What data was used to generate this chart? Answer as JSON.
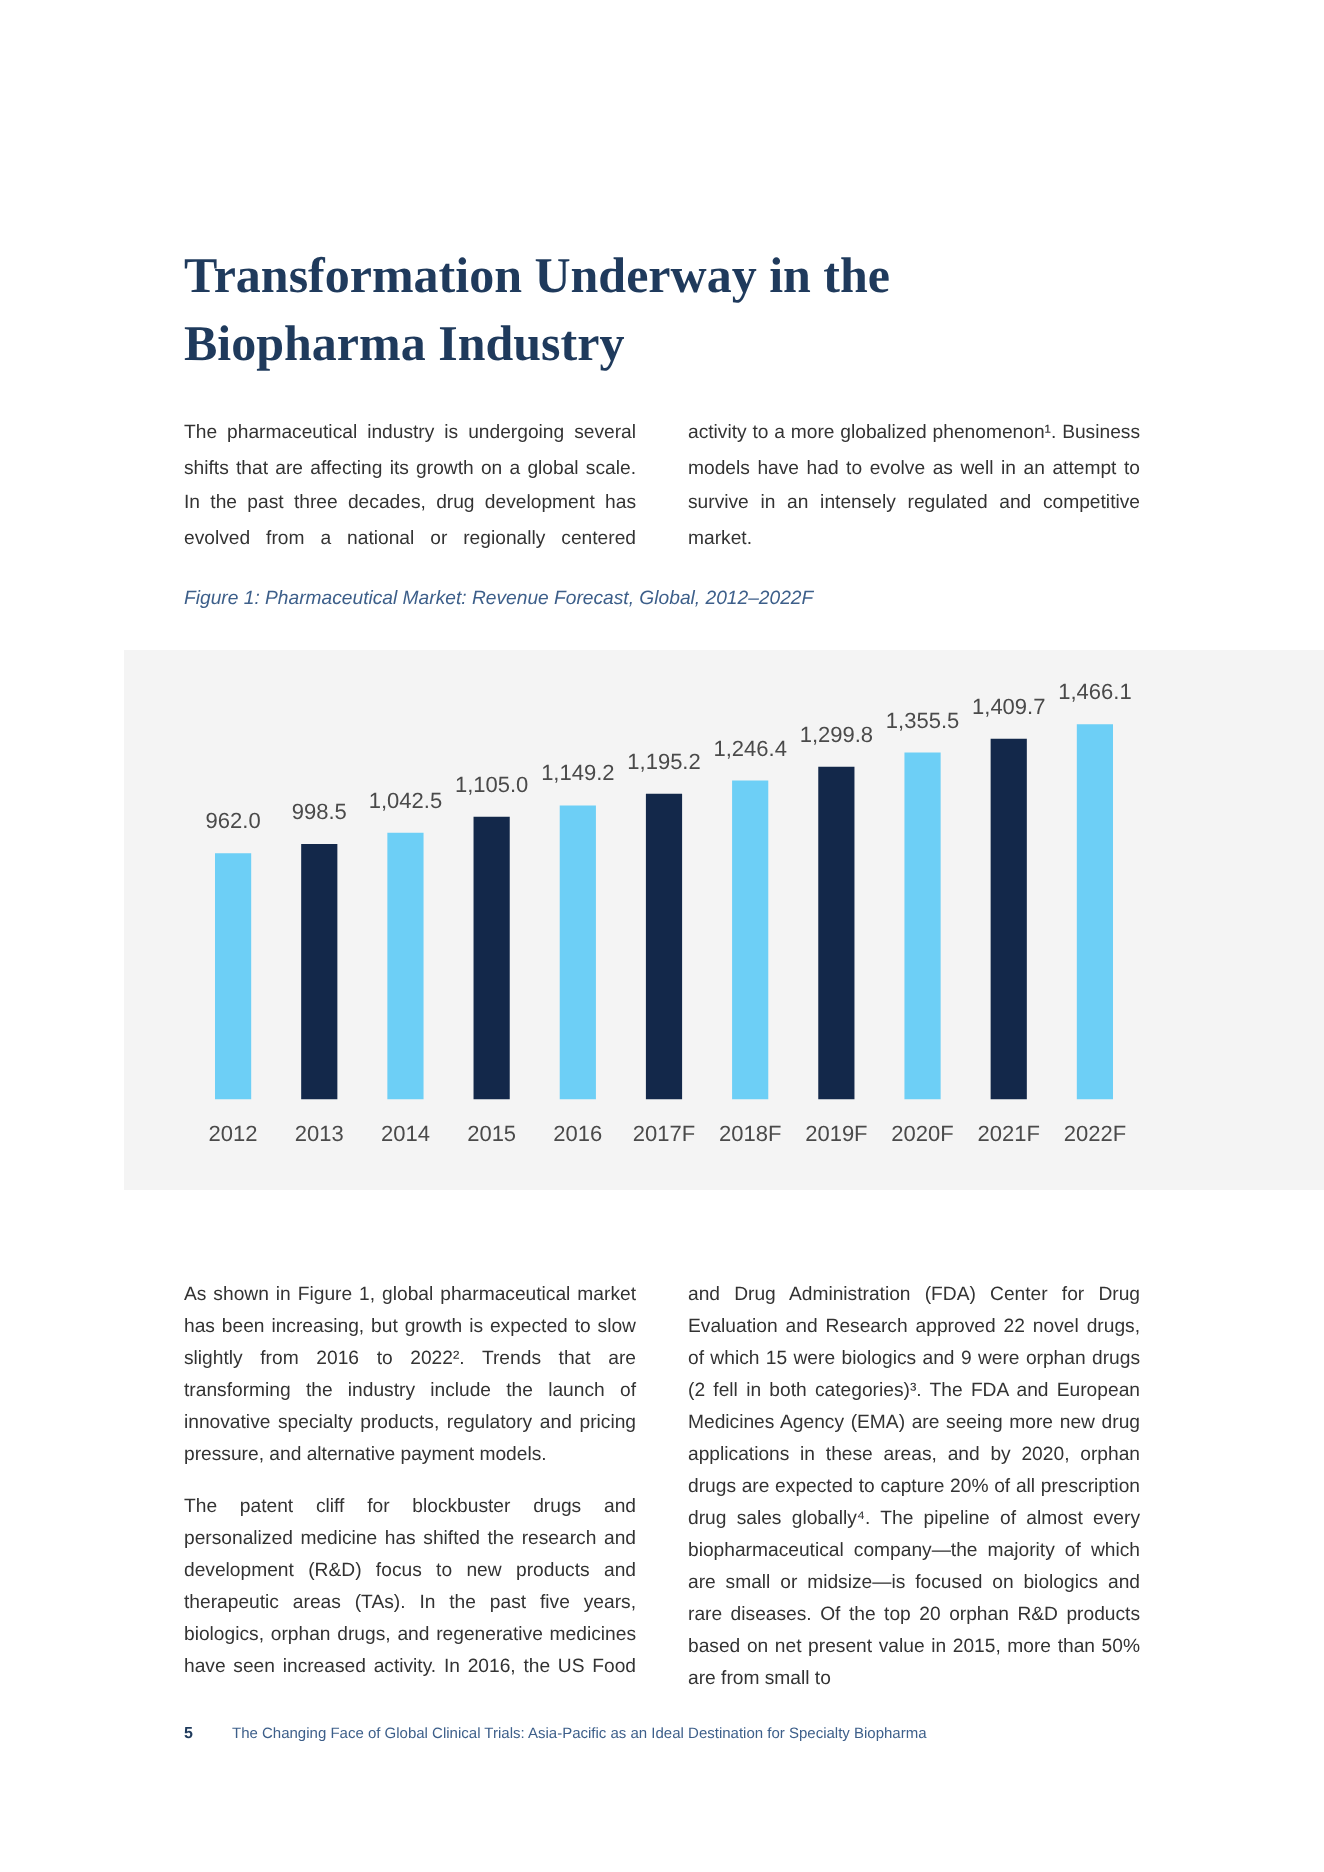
{
  "chart_data": {
    "type": "bar",
    "title": "Transformation Underway in the Biopharma Industry",
    "subtitle": "Figure 1: Pharmaceutical Market: Revenue Forecast, Global, 2012–2022F",
    "categories": [
      "2012",
      "2013",
      "2014",
      "2015",
      "2016",
      "2017F",
      "2018F",
      "2019F",
      "2020F",
      "2021F",
      "2022F"
    ],
    "values": [
      962.0,
      998.5,
      1042.5,
      1105.0,
      1149.2,
      1195.2,
      1246.4,
      1299.8,
      1355.5,
      1409.7,
      1466.1
    ],
    "value_labels": [
      "962.0",
      "998.5",
      "1,042.5",
      "1,105.0",
      "1,149.2",
      "1,195.2",
      "1,246.4",
      "1,299.8",
      "1,355.5",
      "1,409.7",
      "1,466.1"
    ],
    "colors": [
      "#6dcff6",
      "#13284a",
      "#6dcff6",
      "#13284a",
      "#6dcff6",
      "#13284a",
      "#6dcff6",
      "#13284a",
      "#6dcff6",
      "#13284a",
      "#6dcff6"
    ],
    "annotations": [
      "The pharmaceutical industry is undergoing several shifts that are affecting its growth on a global scale. In the past three decades, drug development has evolved from a national or regionally centered",
      "activity to a more globalized phenomenon¹. Business models have had to evolve as well in an attempt to survive in an intensely regulated and competitive market.",
      "As shown in Figure 1, global pharmaceutical market has been increasing, but growth is expected to slow slightly from 2016 to 2022². Trends that are transforming the industry include the launch of innovative specialty products, regulatory and pricing pressure, and alternative payment models.",
      "The patent cliff for blockbuster drugs and personalized medicine has shifted the research and development (R&D) focus to new products and therapeutic areas (TAs). In the past five years, biologics, orphan drugs, and regenerative medicines have seen increased activity. In 2016, the US Food",
      "and Drug Administration (FDA) Center for Drug Evaluation and Research approved 22 novel drugs, of which 15 were biologics and 9 were orphan drugs (2 fell in both categories)³. The FDA and European Medicines Agency (EMA) are seeing more new drug applications in these areas, and by 2020, orphan drugs are expected to capture 20% of all prescription drug sales globally⁴. The pipeline of almost every biopharmaceutical company—the majority of which are small or midsize—is focused on biologics and rare diseases. Of the top 20 orphan R&D products based on net present value in 2015, more than 50% are from small to",
      "5",
      "The Changing Face of Global Clinical Trials: Asia-Pacific as an Ideal Destination for Specialty Biopharma"
    ]
  }
}
